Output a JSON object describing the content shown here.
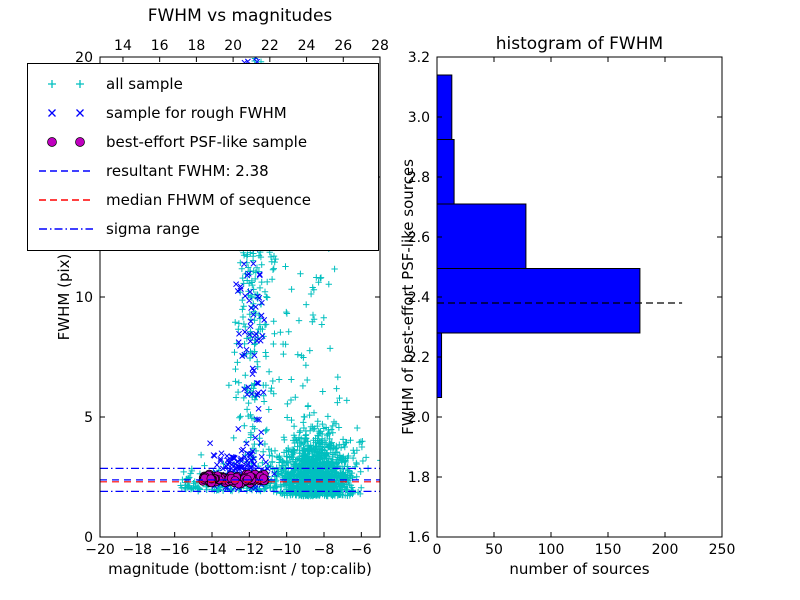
{
  "colors": {
    "cyan": "#00bfbf",
    "blue": "#0000ff",
    "magenta": "#bf00bf",
    "red": "#ff0000",
    "black": "#000000",
    "bar_fill": "#0000ff",
    "background": "#ffffff"
  },
  "chart_data": [
    {
      "type": "scatter",
      "title": "FWHM vs magnitudes",
      "xlabel": "magnitude (bottom:isnt / top:calib)",
      "ylabel": "FWHM (pix)",
      "xlim": [
        -20,
        -5
      ],
      "top_xlim": [
        12.75,
        28
      ],
      "ylim": [
        0,
        20
      ],
      "x_ticks": [
        -20,
        -18,
        -16,
        -14,
        -12,
        -10,
        -8,
        -6
      ],
      "top_x_ticks": [
        14,
        16,
        18,
        20,
        22,
        24,
        26,
        28
      ],
      "y_ticks": [
        0,
        5,
        10,
        15,
        20
      ],
      "series": [
        {
          "name": "all sample",
          "marker": "plus",
          "color_key": "cyan",
          "clusters": [
            {
              "n": 1300,
              "x": {
                "dist": "normal",
                "mu": -8.5,
                "sigma": 1.0
              },
              "y": {
                "dist": "halfnormal",
                "min": 1.7,
                "sigma": 1.2
              }
            },
            {
              "n": 260,
              "x": {
                "dist": "normal",
                "mu": -11.8,
                "sigma": 0.5
              },
              "y": {
                "dist": "uniform",
                "min": 2.0,
                "max": 20.0
              }
            },
            {
              "n": 170,
              "x": {
                "dist": "uniform",
                "min": -12.8,
                "max": -7.2
              },
              "y": {
                "dist": "uniform",
                "min": 5.5,
                "max": 20.0
              }
            },
            {
              "n": 130,
              "x": {
                "dist": "uniform",
                "min": -15.7,
                "max": -11.0
              },
              "y": {
                "dist": "halfnormal",
                "min": 1.9,
                "sigma": 0.45
              }
            }
          ]
        },
        {
          "name": "sample for rough FWHM",
          "marker": "x",
          "color_key": "blue",
          "clusters": [
            {
              "n": 130,
              "x": {
                "dist": "normal",
                "mu": -11.85,
                "sigma": 0.45
              },
              "y": {
                "dist": "uniform",
                "min": 2.3,
                "max": 20.0
              }
            },
            {
              "n": 110,
              "x": {
                "dist": "normal",
                "mu": -12.5,
                "sigma": 0.8
              },
              "y": {
                "dist": "normal",
                "mu": 2.8,
                "sigma": 0.45
              },
              "clip": {
                "y": [
                  2.05,
                  4.6
                ]
              }
            }
          ]
        },
        {
          "name": "best-effort PSF-like sample",
          "marker": "circle",
          "color_key": "magenta",
          "clusters": [
            {
              "n": 115,
              "x": {
                "dist": "uniform",
                "min": -14.55,
                "max": -11.15
              },
              "y": {
                "dist": "normal",
                "mu": 2.42,
                "sigma": 0.08
              },
              "clip": {
                "y": [
                  2.18,
                  2.62
                ]
              }
            }
          ]
        }
      ],
      "hlines": [
        {
          "name": "resultant-fwhm-line",
          "y": 2.38,
          "style": "dashed",
          "color_key": "blue"
        },
        {
          "name": "median-fwhm-line",
          "y": 2.3,
          "style": "dashed",
          "color_key": "red"
        },
        {
          "name": "sigma-upper-line",
          "y": 2.86,
          "style": "dashdot",
          "color_key": "blue"
        },
        {
          "name": "sigma-lower-line",
          "y": 1.9,
          "style": "dashdot",
          "color_key": "blue"
        }
      ],
      "legend": {
        "items": [
          {
            "label": "all sample",
            "marker": "plus",
            "color_key": "cyan"
          },
          {
            "label": "sample for rough FWHM",
            "marker": "x",
            "color_key": "blue"
          },
          {
            "label": "best-effort PSF-like sample",
            "marker": "circle",
            "color_key": "magenta"
          },
          {
            "label": "resultant FWHM: 2.38",
            "marker": "dashed-line",
            "color_key": "blue"
          },
          {
            "label": "median FHWM of sequence",
            "marker": "dashed-line",
            "color_key": "red"
          },
          {
            "label": "sigma range",
            "marker": "dashdot-line",
            "color_key": "blue"
          }
        ]
      },
      "resultant_fwhm": 2.38
    },
    {
      "type": "bar",
      "orientation": "horizontal",
      "title": "histogram of FWHM",
      "xlabel": "number of sources",
      "ylabel": "FWHM of best-effort PSF-like sources",
      "xlim": [
        0,
        250
      ],
      "ylim": [
        1.6,
        3.2
      ],
      "x_ticks": [
        0,
        50,
        100,
        150,
        200,
        250
      ],
      "y_ticks": [
        1.6,
        1.8,
        2.0,
        2.2,
        2.4,
        2.6,
        2.8,
        3.0,
        3.2
      ],
      "bin_edges": [
        2.065,
        2.28,
        2.495,
        2.71,
        2.925,
        3.14
      ],
      "counts": [
        4,
        178,
        78,
        15,
        13
      ],
      "median_line": {
        "y": 2.38,
        "x_end": 215,
        "style": "dashed",
        "color_key": "black"
      }
    }
  ]
}
